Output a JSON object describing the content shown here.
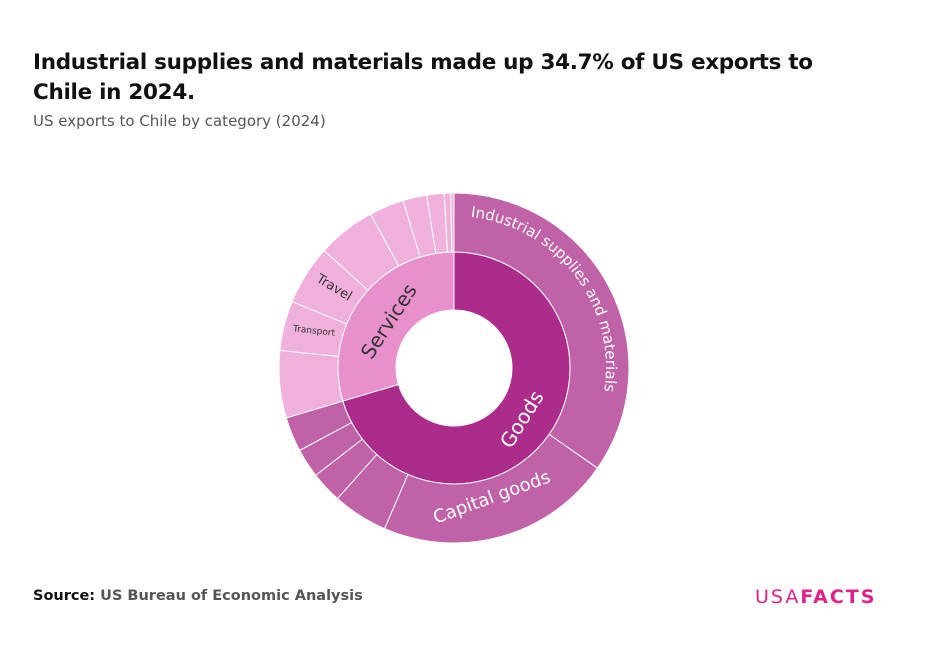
{
  "title": "Industrial supplies and materials made up 34.7% of US exports to Chile in 2024.",
  "subtitle": "US exports to Chile by category (2024)",
  "source": {
    "label": "Source:",
    "text": "US Bureau of Economic Analysis"
  },
  "logo": {
    "part1": "USA",
    "part2": "FACTS"
  },
  "colors": {
    "goods_inner": "#AB2C8A",
    "goods_outer": "#C062A8",
    "services_inner": "#E890CC",
    "services_outer": "#EFB0DB",
    "brand": "#E0218A"
  },
  "chart_data": {
    "type": "sunburst",
    "unit": "percent of total exports",
    "inner": [
      {
        "name": "Goods",
        "value": 70.4
      },
      {
        "name": "Services",
        "value": 29.6
      }
    ],
    "outer": [
      {
        "parent": "Goods",
        "name": "Industrial supplies and materials",
        "value": 34.7
      },
      {
        "parent": "Goods",
        "name": "Capital goods",
        "value": 21.8
      },
      {
        "parent": "Goods",
        "name": "",
        "value": 5.1
      },
      {
        "parent": "Goods",
        "name": "",
        "value": 2.9
      },
      {
        "parent": "Goods",
        "name": "",
        "value": 2.7
      },
      {
        "parent": "Goods",
        "name": "",
        "value": 3.2
      },
      {
        "parent": "Services",
        "name": "",
        "value": 6.2
      },
      {
        "parent": "Services",
        "name": "Transport",
        "value": 4.6
      },
      {
        "parent": "Services",
        "name": "Travel",
        "value": 5.5
      },
      {
        "parent": "Services",
        "name": "",
        "value": 5.4
      },
      {
        "parent": "Services",
        "name": "",
        "value": 3.2
      },
      {
        "parent": "Services",
        "name": "",
        "value": 2.2
      },
      {
        "parent": "Services",
        "name": "",
        "value": 1.6
      },
      {
        "parent": "Services",
        "name": "",
        "value": 0.6
      },
      {
        "parent": "Services",
        "name": "",
        "value": 0.3
      }
    ]
  }
}
